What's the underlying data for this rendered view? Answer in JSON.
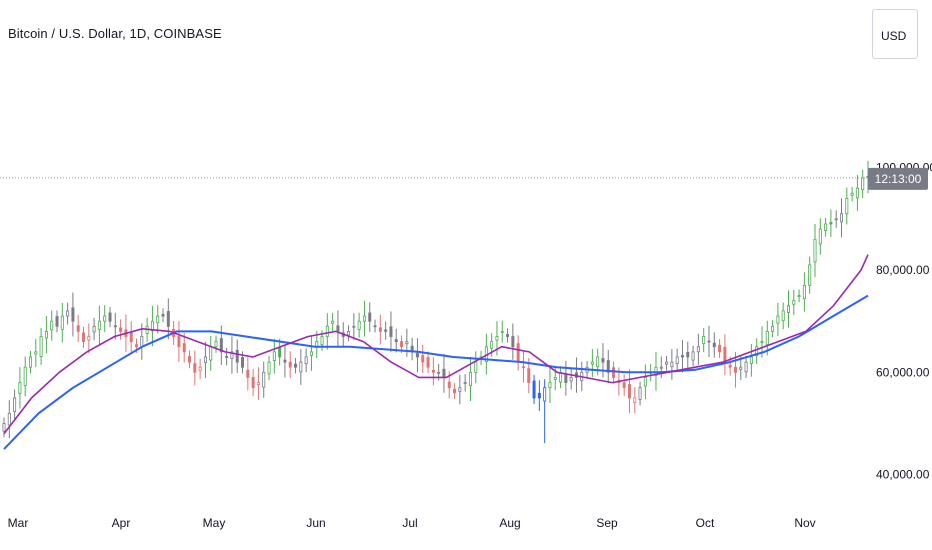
{
  "chart_data": {
    "type": "candlestick",
    "title": "Bitcoin / U.S. Dollar, 1D, COINBASE",
    "currency_label": "USD",
    "ylim": [
      37000,
      123000
    ],
    "y_ticks": [
      {
        "value": 40000,
        "label": "40,000.00"
      },
      {
        "value": 60000,
        "label": "60,000.00"
      },
      {
        "value": 80000,
        "label": "80,000.00"
      },
      {
        "value": 100000,
        "label": "100,000.00"
      }
    ],
    "x_ticks": [
      "Mar",
      "Apr",
      "May",
      "Jun",
      "Jul",
      "Aug",
      "Sep",
      "Oct",
      "Nov"
    ],
    "countdown_label": "12:13:00",
    "current_price_line": 98000,
    "colors": {
      "bull": "#4caf50",
      "bear": "#e57373",
      "neutral": "#787b86",
      "sell_climax": "#2962ff",
      "ma_fast": "#9c27b0",
      "ma_slow": "#2962ff",
      "label_bg": "#787b86"
    },
    "closes": [
      50000,
      52000,
      55000,
      58000,
      61000,
      63000,
      64000,
      67000,
      68000,
      70000,
      69000,
      71000,
      72000,
      70000,
      68000,
      66000,
      67000,
      69000,
      70000,
      71000,
      70000,
      69000,
      68000,
      67000,
      66000,
      65000,
      67000,
      69000,
      70000,
      71000,
      71000,
      69000,
      67000,
      65000,
      64000,
      62000,
      60000,
      61000,
      63000,
      65000,
      66000,
      64000,
      63000,
      64000,
      62000,
      61000,
      59000,
      57000,
      58000,
      60000,
      62000,
      64000,
      63000,
      62000,
      61000,
      61000,
      62000,
      63000,
      64000,
      66000,
      67000,
      69000,
      70000,
      68000,
      67000,
      68000,
      69000,
      70000,
      71000,
      70000,
      69000,
      68000,
      68000,
      67000,
      66000,
      65000,
      66000,
      64000,
      63000,
      62000,
      61000,
      60000,
      60000,
      59000,
      57000,
      56000,
      57000,
      58000,
      60000,
      62000,
      63000,
      65000,
      66000,
      67000,
      68000,
      67000,
      65000,
      62000,
      61000,
      58000,
      55000,
      55000,
      57000,
      58000,
      59000,
      60000,
      58000,
      59000,
      59000,
      60000,
      61000,
      62000,
      63000,
      62000,
      60000,
      59000,
      58000,
      57000,
      55000,
      55000,
      57000,
      59000,
      60000,
      61000,
      61000,
      62000,
      62000,
      63000,
      63000,
      63000,
      64000,
      65000,
      67000,
      66000,
      65000,
      64000,
      62000,
      61000,
      60000,
      61000,
      62000,
      63000,
      65000,
      66000,
      68000,
      69000,
      71000,
      72000,
      73000,
      74000,
      75000,
      77000,
      81000,
      86000,
      88000,
      89000,
      89000,
      90000,
      91000,
      94000,
      95000,
      96000,
      98000,
      98000
    ],
    "series": [
      {
        "name": "",
        "points": [
          [
            0,
            45000
          ],
          [
            10,
            52000
          ],
          [
            20,
            57000
          ],
          [
            30,
            61000
          ],
          [
            40,
            65000
          ],
          [
            50,
            68000
          ],
          [
            60,
            68000
          ],
          [
            70,
            67000
          ],
          [
            80,
            66000
          ],
          [
            90,
            65000
          ],
          [
            100,
            65000
          ],
          [
            110,
            64500
          ],
          [
            120,
            64000
          ],
          [
            130,
            63000
          ],
          [
            140,
            62500
          ],
          [
            150,
            62000
          ],
          [
            160,
            61000
          ],
          [
            170,
            60500
          ],
          [
            180,
            60000
          ],
          [
            190,
            60000
          ],
          [
            200,
            60500
          ],
          [
            210,
            62000
          ],
          [
            220,
            64000
          ],
          [
            230,
            67000
          ],
          [
            240,
            71000
          ],
          [
            250,
            75000
          ]
        ]
      },
      {
        "name": "",
        "points": [
          [
            0,
            48000
          ],
          [
            8,
            55000
          ],
          [
            16,
            60000
          ],
          [
            24,
            64000
          ],
          [
            32,
            67000
          ],
          [
            40,
            68500
          ],
          [
            48,
            68000
          ],
          [
            56,
            66000
          ],
          [
            64,
            64000
          ],
          [
            72,
            63000
          ],
          [
            80,
            65000
          ],
          [
            88,
            67000
          ],
          [
            96,
            68000
          ],
          [
            104,
            66000
          ],
          [
            112,
            62000
          ],
          [
            120,
            59000
          ],
          [
            128,
            59000
          ],
          [
            136,
            62000
          ],
          [
            144,
            65000
          ],
          [
            152,
            64000
          ],
          [
            160,
            60000
          ],
          [
            168,
            59000
          ],
          [
            176,
            58000
          ],
          [
            184,
            59000
          ],
          [
            192,
            60000
          ],
          [
            200,
            61000
          ],
          [
            208,
            62000
          ],
          [
            216,
            64000
          ],
          [
            224,
            66000
          ],
          [
            232,
            68000
          ],
          [
            240,
            73000
          ],
          [
            248,
            80000
          ],
          [
            250,
            83000
          ]
        ]
      }
    ]
  }
}
